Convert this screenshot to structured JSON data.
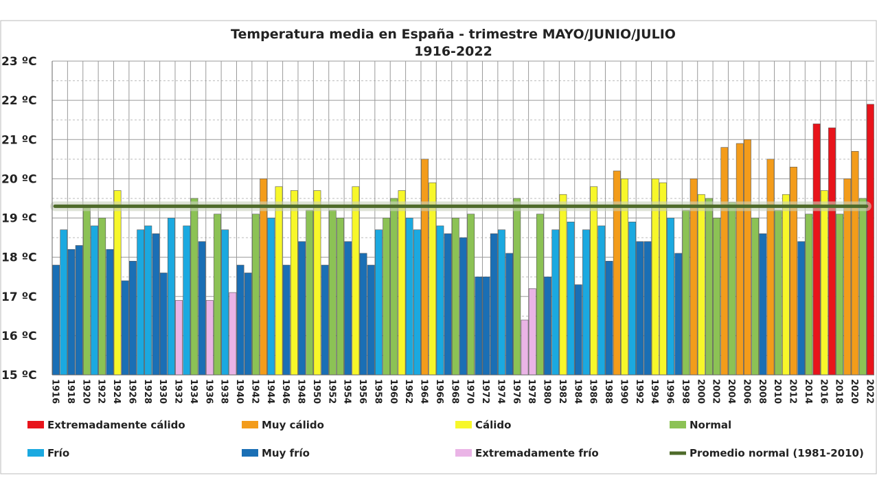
{
  "chart_data": {
    "type": "bar",
    "title": "Temperatura media en España - trimestre MAYO/JUNIO/JULIO",
    "subtitle": "1916-2022",
    "xlabel": "",
    "ylabel": "",
    "ylim": [
      15,
      23
    ],
    "y_ticks": [
      "15 ºC",
      "16 ºC",
      "17 ºC",
      "18 ºC",
      "19 ºC",
      "20 ºC",
      "21 ºC",
      "22 ºC",
      "23 ºC"
    ],
    "grid": true,
    "legend_position": "bottom",
    "x_start": 1916,
    "years": [
      1916,
      1917,
      1918,
      1919,
      1920,
      1921,
      1922,
      1923,
      1924,
      1925,
      1926,
      1927,
      1928,
      1929,
      1930,
      1931,
      1932,
      1933,
      1934,
      1935,
      1936,
      1937,
      1938,
      1939,
      1940,
      1941,
      1942,
      1943,
      1944,
      1945,
      1946,
      1947,
      1948,
      1949,
      1950,
      1951,
      1952,
      1953,
      1954,
      1955,
      1956,
      1957,
      1958,
      1959,
      1960,
      1961,
      1962,
      1963,
      1964,
      1965,
      1966,
      1967,
      1968,
      1969,
      1970,
      1971,
      1972,
      1973,
      1974,
      1975,
      1976,
      1977,
      1978,
      1979,
      1980,
      1981,
      1982,
      1983,
      1984,
      1985,
      1986,
      1987,
      1988,
      1989,
      1990,
      1991,
      1992,
      1993,
      1994,
      1995,
      1996,
      1997,
      1998,
      1999,
      2000,
      2001,
      2002,
      2003,
      2004,
      2005,
      2006,
      2007,
      2008,
      2009,
      2010,
      2011,
      2012,
      2013,
      2014,
      2015,
      2016,
      2017,
      2018,
      2019,
      2020,
      2021,
      2022
    ],
    "values": [
      17.8,
      18.7,
      18.2,
      18.3,
      19.3,
      18.8,
      19.0,
      18.2,
      19.7,
      17.4,
      17.9,
      18.7,
      18.8,
      18.6,
      17.6,
      19.0,
      16.9,
      18.8,
      19.5,
      18.4,
      16.9,
      19.1,
      18.7,
      17.1,
      17.8,
      17.6,
      19.1,
      20.0,
      19.0,
      19.8,
      17.8,
      19.7,
      18.4,
      19.2,
      19.7,
      17.8,
      19.2,
      19.0,
      18.4,
      19.8,
      18.1,
      17.8,
      18.7,
      19.0,
      19.5,
      19.7,
      19.0,
      18.7,
      20.5,
      19.9,
      18.8,
      18.6,
      19.0,
      18.5,
      19.1,
      17.5,
      17.5,
      18.6,
      18.7,
      18.1,
      19.5,
      16.4,
      17.2,
      19.1,
      17.5,
      18.7,
      19.6,
      18.9,
      17.3,
      18.7,
      19.8,
      18.8,
      17.9,
      20.2,
      20.0,
      18.9,
      18.4,
      18.4,
      20.0,
      19.9,
      19.0,
      18.1,
      19.2,
      20.0,
      19.6,
      19.5,
      19.0,
      20.8,
      19.4,
      20.9,
      21.0,
      19.0,
      18.6,
      20.5,
      19.2,
      19.6,
      20.3,
      18.4,
      19.1,
      21.4,
      19.7,
      21.3,
      19.1,
      20.0,
      20.7,
      19.5,
      21.9
    ],
    "classes": [
      "MF",
      "F",
      "MF",
      "MF",
      "N",
      "F",
      "N",
      "MF",
      "C",
      "MF",
      "MF",
      "F",
      "F",
      "MF",
      "MF",
      "F",
      "EF",
      "F",
      "N",
      "MF",
      "EF",
      "N",
      "F",
      "EF",
      "MF",
      "MF",
      "N",
      "MC",
      "F",
      "C",
      "MF",
      "C",
      "MF",
      "N",
      "C",
      "MF",
      "N",
      "N",
      "MF",
      "C",
      "MF",
      "MF",
      "F",
      "N",
      "N",
      "C",
      "F",
      "F",
      "MC",
      "C",
      "F",
      "MF",
      "N",
      "MF",
      "N",
      "MF",
      "MF",
      "MF",
      "F",
      "MF",
      "N",
      "EF",
      "EF",
      "N",
      "MF",
      "F",
      "C",
      "F",
      "MF",
      "F",
      "C",
      "F",
      "MF",
      "MC",
      "C",
      "F",
      "MF",
      "MF",
      "C",
      "C",
      "F",
      "MF",
      "N",
      "MC",
      "C",
      "N",
      "N",
      "MC",
      "N",
      "MC",
      "MC",
      "N",
      "MF",
      "MC",
      "N",
      "C",
      "MC",
      "MF",
      "N",
      "EC",
      "C",
      "EC",
      "N",
      "MC",
      "MC",
      "N",
      "EC"
    ],
    "categories": {
      "EC": {
        "name": "Extremadamente cálido",
        "color": "#e8141b"
      },
      "MC": {
        "name": "Muy cálido",
        "color": "#f39c1b"
      },
      "C": {
        "name": "Cálido",
        "color": "#f7f72a"
      },
      "N": {
        "name": "Normal",
        "color": "#8cc255"
      },
      "F": {
        "name": "Frío",
        "color": "#1ba9e0"
      },
      "MF": {
        "name": "Muy frío",
        "color": "#1a6fb5"
      },
      "EF": {
        "name": "Extremadamente frío",
        "color": "#eab4e6"
      }
    },
    "legend_order": [
      "EC",
      "MC",
      "C",
      "N",
      "F",
      "MF",
      "EF"
    ],
    "reference_line": {
      "name": "Promedio normal (1981-2010)",
      "value": 19.3,
      "color": "#4e6b2a"
    }
  }
}
